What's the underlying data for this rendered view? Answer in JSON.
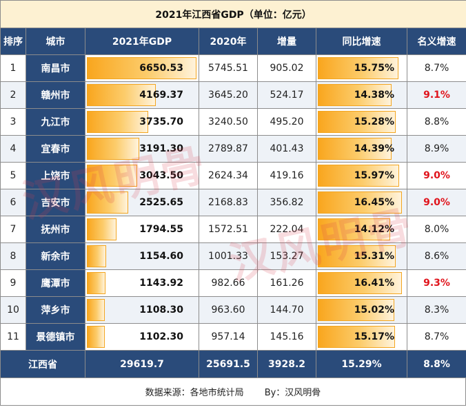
{
  "title": "2021年江西省GDP（单位：亿元）",
  "columns": [
    "排序",
    "城市",
    "2021年GDP",
    "2020年",
    "增量",
    "同比增速",
    "名义增速"
  ],
  "chart_data": {
    "type": "table",
    "title": "2021年江西省GDP（单位：亿元）",
    "rows": [
      {
        "rank": "1",
        "city": "南昌市",
        "gdp2021": 6650.53,
        "gdp2021_text": "6650.53",
        "gdp2020": "5745.51",
        "increase": "905.02",
        "growth": 15.75,
        "growth_text": "15.75%",
        "nominal": "8.7%",
        "nominal_highlight": false
      },
      {
        "rank": "2",
        "city": "赣州市",
        "gdp2021": 4169.37,
        "gdp2021_text": "4169.37",
        "gdp2020": "3645.20",
        "increase": "524.17",
        "growth": 14.38,
        "growth_text": "14.38%",
        "nominal": "9.1%",
        "nominal_highlight": true
      },
      {
        "rank": "3",
        "city": "九江市",
        "gdp2021": 3735.7,
        "gdp2021_text": "3735.70",
        "gdp2020": "3240.50",
        "increase": "495.20",
        "growth": 15.28,
        "growth_text": "15.28%",
        "nominal": "8.8%",
        "nominal_highlight": false
      },
      {
        "rank": "4",
        "city": "宜春市",
        "gdp2021": 3191.3,
        "gdp2021_text": "3191.30",
        "gdp2020": "2789.87",
        "increase": "401.43",
        "growth": 14.39,
        "growth_text": "14.39%",
        "nominal": "8.9%",
        "nominal_highlight": false
      },
      {
        "rank": "5",
        "city": "上饶市",
        "gdp2021": 3043.5,
        "gdp2021_text": "3043.50",
        "gdp2020": "2624.34",
        "increase": "419.16",
        "growth": 15.97,
        "growth_text": "15.97%",
        "nominal": "9.0%",
        "nominal_highlight": true
      },
      {
        "rank": "6",
        "city": "吉安市",
        "gdp2021": 2525.65,
        "gdp2021_text": "2525.65",
        "gdp2020": "2168.83",
        "increase": "356.82",
        "growth": 16.45,
        "growth_text": "16.45%",
        "nominal": "9.0%",
        "nominal_highlight": true
      },
      {
        "rank": "7",
        "city": "抚州市",
        "gdp2021": 1794.55,
        "gdp2021_text": "1794.55",
        "gdp2020": "1572.51",
        "increase": "222.04",
        "growth": 14.12,
        "growth_text": "14.12%",
        "nominal": "8.0%",
        "nominal_highlight": false
      },
      {
        "rank": "8",
        "city": "新余市",
        "gdp2021": 1154.6,
        "gdp2021_text": "1154.60",
        "gdp2020": "1001.33",
        "increase": "153.27",
        "growth": 15.31,
        "growth_text": "15.31%",
        "nominal": "8.6%",
        "nominal_highlight": false
      },
      {
        "rank": "9",
        "city": "鹰潭市",
        "gdp2021": 1143.92,
        "gdp2021_text": "1143.92",
        "gdp2020": "982.66",
        "increase": "161.26",
        "growth": 16.41,
        "growth_text": "16.41%",
        "nominal": "9.3%",
        "nominal_highlight": true
      },
      {
        "rank": "10",
        "city": "萍乡市",
        "gdp2021": 1108.3,
        "gdp2021_text": "1108.30",
        "gdp2020": "963.60",
        "increase": "144.70",
        "growth": 15.02,
        "growth_text": "15.02%",
        "nominal": "8.3%",
        "nominal_highlight": false
      },
      {
        "rank": "11",
        "city": "景德镇市",
        "gdp2021": 1102.3,
        "gdp2021_text": "1102.30",
        "gdp2020": "957.14",
        "increase": "145.16",
        "growth": 15.17,
        "growth_text": "15.17%",
        "nominal": "8.7%",
        "nominal_highlight": false
      }
    ],
    "total": {
      "label": "江西省",
      "gdp2021": "29619.7",
      "gdp2020": "25691.5",
      "increase": "3928.2",
      "growth": "15.29%",
      "nominal": "8.8%"
    }
  },
  "footer": {
    "source": "数据来源：各地市统计局",
    "author": "By：汉风明骨"
  },
  "watermark": "汉风明骨",
  "colors": {
    "header_bg": "#2a4b7a",
    "bar": "#f9a61e",
    "highlight": "#e0141c",
    "title_bg": "#fdf1d2"
  }
}
